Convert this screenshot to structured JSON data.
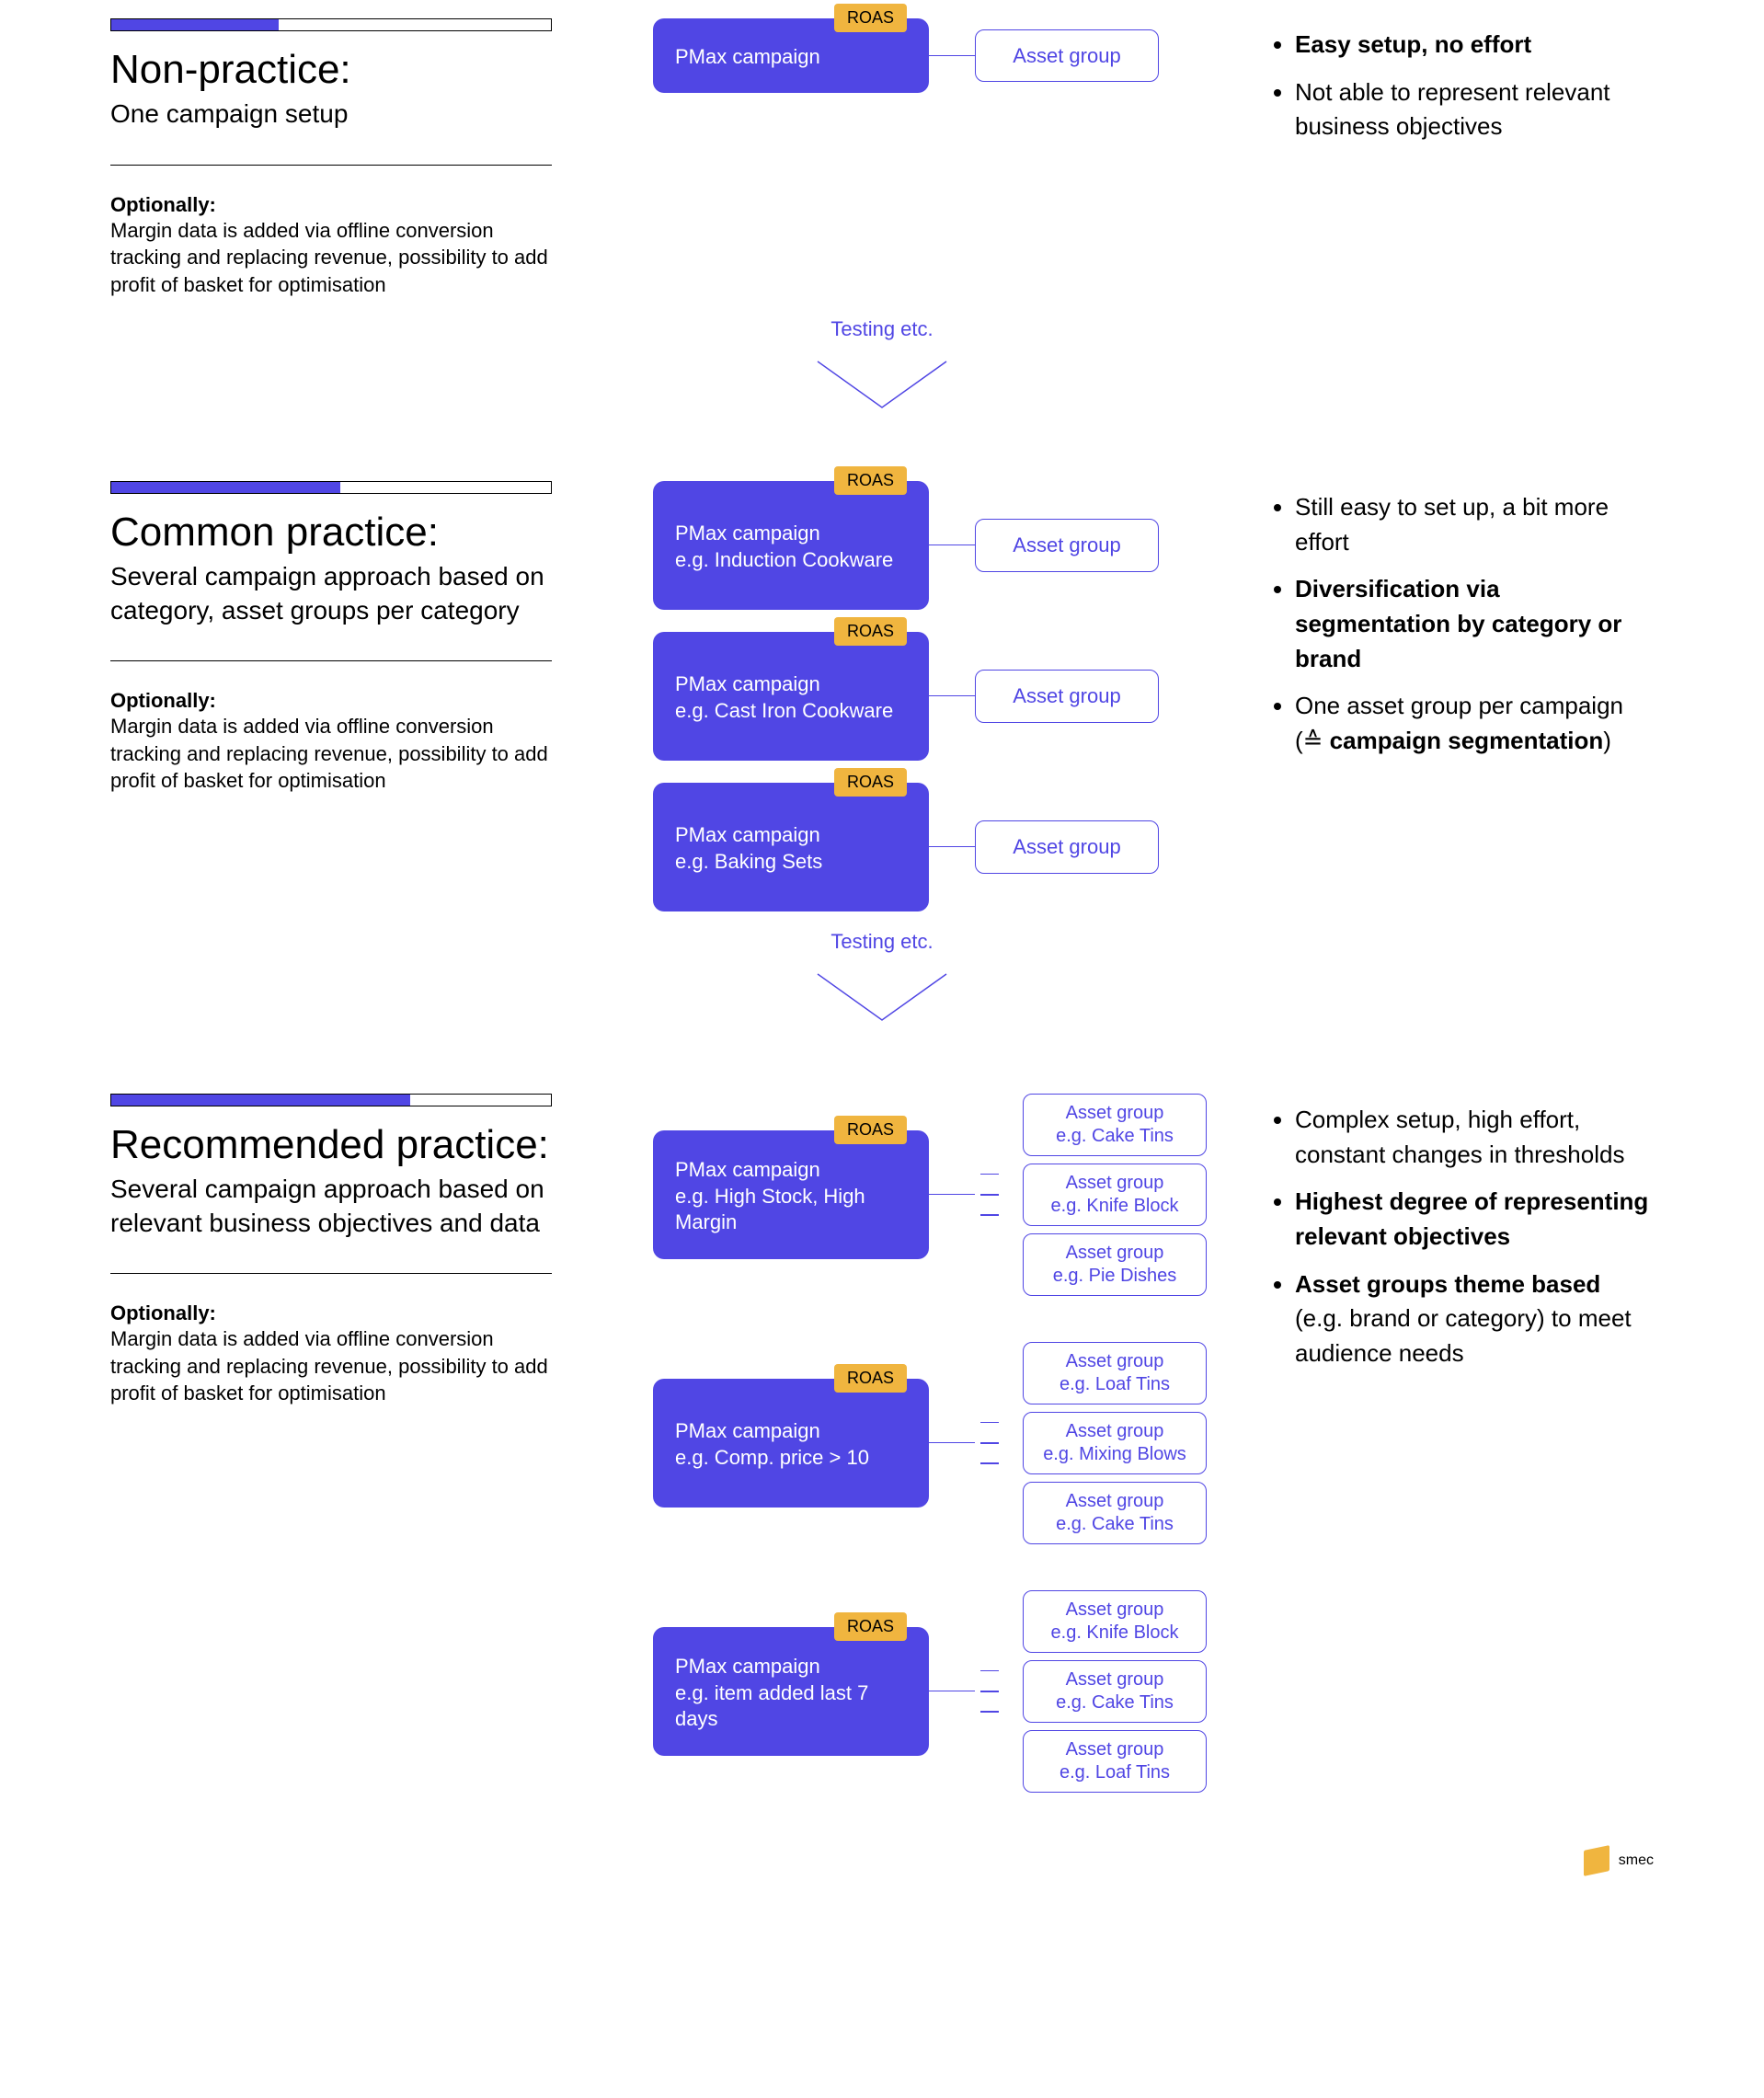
{
  "colors": {
    "primary": "#5046e4",
    "accent": "#f0b53f",
    "text": "#000000",
    "bg": "#ffffff"
  },
  "roas_label": "ROAS",
  "asset_group_label": "Asset group",
  "transition_label": "Testing etc.",
  "optionally_label": "Optionally:",
  "optionally_text": "Margin data is added via offline conversion tracking and replacing revenue, possibility to add profit of basket for optimisation",
  "logo_text": "smec",
  "sections": [
    {
      "progress_pct": 38,
      "title": "Non-practice:",
      "subtitle": "One campaign setup",
      "campaigns": [
        {
          "label": "PMax campaign",
          "asset_groups_single": true
        }
      ],
      "bullets": [
        {
          "bold": "Easy setup, no effort",
          "rest": ""
        },
        {
          "bold": "",
          "rest": "Not able to represent relevant business objectives"
        }
      ]
    },
    {
      "progress_pct": 52,
      "title": "Common practice:",
      "subtitle": "Several campaign approach based on category, asset groups per category",
      "campaigns": [
        {
          "label": "PMax campaign",
          "sub": "e.g. Induction Cookware",
          "asset_groups_single": true
        },
        {
          "label": "PMax campaign",
          "sub": "e.g. Cast Iron Cookware",
          "asset_groups_single": true
        },
        {
          "label": "PMax campaign",
          "sub": "e.g. Baking Sets",
          "asset_groups_single": true
        }
      ],
      "bullets": [
        {
          "bold": "",
          "rest": "Still easy to set up, a bit more effort"
        },
        {
          "bold": "Diversification via segmentation by category or brand",
          "rest": ""
        },
        {
          "bold": "",
          "rest_pre": "One asset group per campaign (≙ ",
          "bold2": "campaign segmentation",
          "rest_post": ")"
        }
      ]
    },
    {
      "progress_pct": 68,
      "title": "Recommended practice:",
      "subtitle": "Several campaign approach based on relevant business objectives and data",
      "campaigns": [
        {
          "label": "PMax campaign",
          "sub": "e.g. High Stock, High Margin",
          "asset_groups": [
            "Asset group\ne.g. Cake Tins",
            "Asset group\ne.g. Knife Block",
            "Asset group\ne.g. Pie Dishes"
          ]
        },
        {
          "label": "PMax campaign",
          "sub": "e.g. Comp. price > 10",
          "asset_groups": [
            "Asset group\ne.g. Loaf Tins",
            "Asset group\ne.g. Mixing Blows",
            "Asset group\ne.g. Cake Tins"
          ]
        },
        {
          "label": "PMax campaign",
          "sub": "e.g. item added last 7 days",
          "asset_groups": [
            "Asset group\ne.g. Knife Block",
            "Asset group\ne.g. Cake Tins",
            "Asset group\ne.g. Loaf Tins"
          ]
        }
      ],
      "bullets": [
        {
          "bold": "",
          "rest": "Complex setup, high effort, constant changes in thresholds"
        },
        {
          "bold": "Highest degree of representing relevant objectives",
          "rest": ""
        },
        {
          "bold": "Asset groups theme based",
          "rest": " (e.g. brand or category) to meet audience needs"
        }
      ]
    }
  ]
}
